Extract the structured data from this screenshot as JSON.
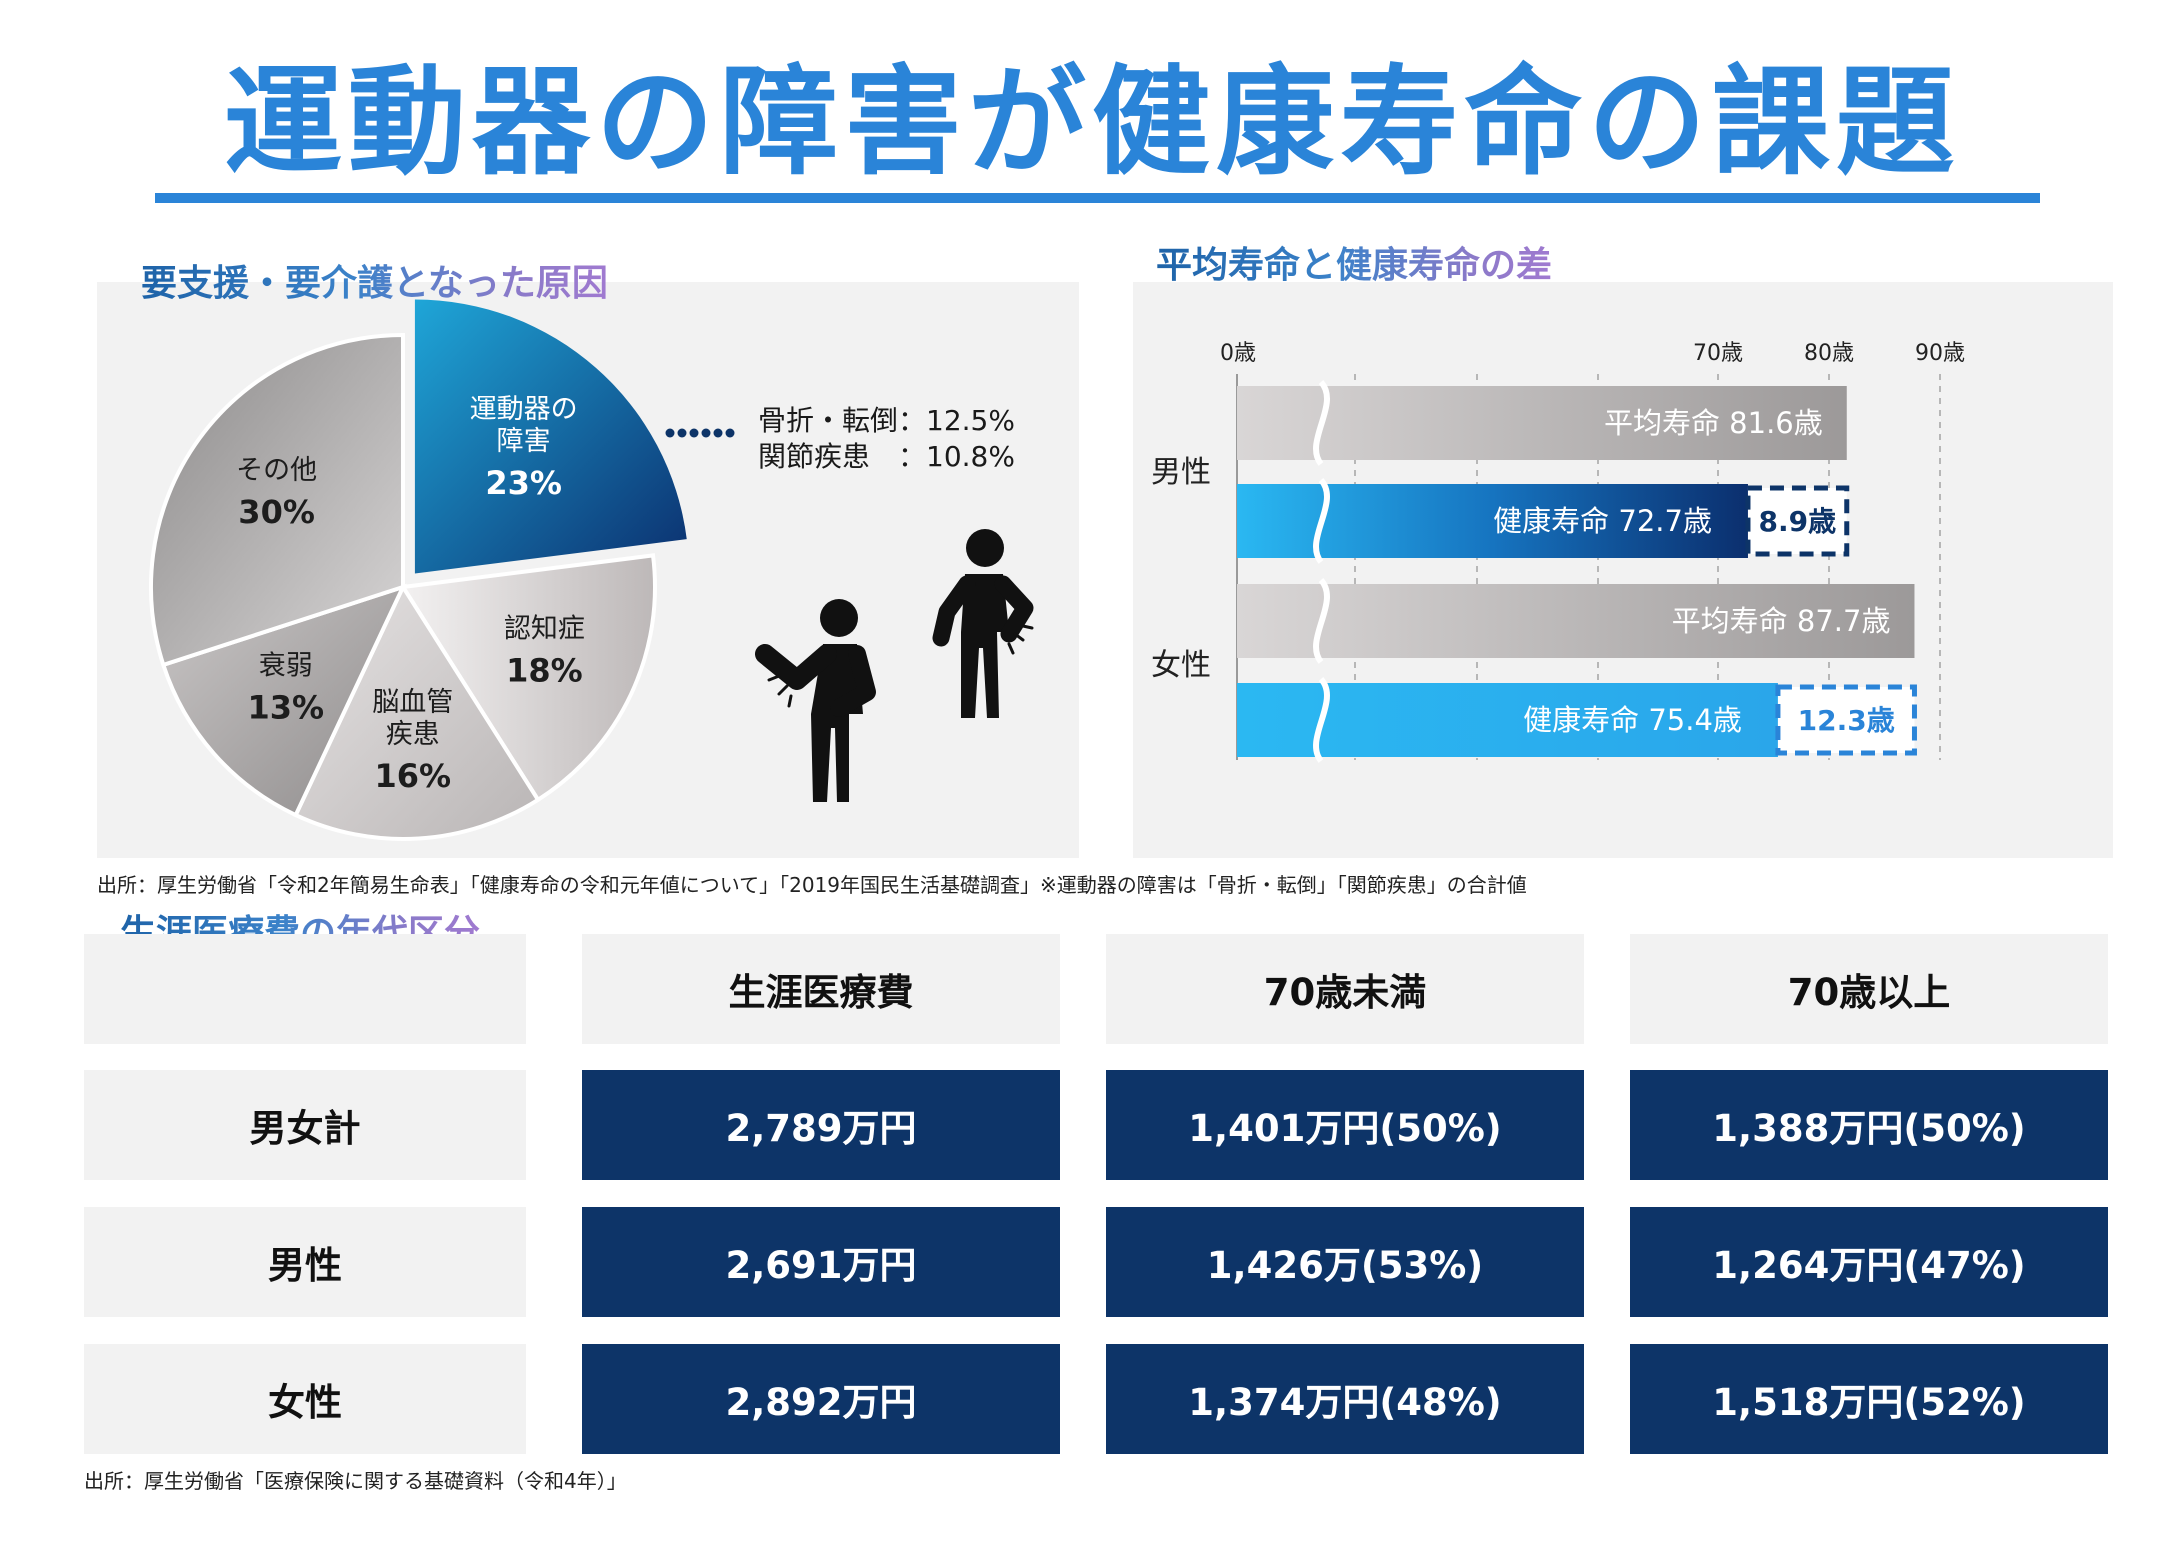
{
  "title": "運動器の障害が健康寿命の課題",
  "section1": {
    "title": "要支援・要介護となった原因",
    "callout_lines": [
      "骨折・転倒：12.5%",
      "関節疾患　：10.8%"
    ]
  },
  "section2": {
    "title": "平均寿命と健康寿命の差"
  },
  "source1": "出所：厚生労働省「令和2年簡易生命表」「健康寿命の令和元年値について」「2019年国民生活基礎調査」※運動器の障害は「骨折・転倒」「関節疾患」の合計値",
  "section3": {
    "title": "生涯医療費の年代区分"
  },
  "table": {
    "headers": [
      "生涯医療費",
      "70歳未満",
      "70歳以上"
    ],
    "rows": [
      {
        "label": "男女計",
        "cells": [
          "2,789万円",
          "1,401万円(50%)",
          "1,388万円(50%)"
        ]
      },
      {
        "label": "男性",
        "cells": [
          "2,691万円",
          "1,426万(53%)",
          "1,264万円(47%)"
        ]
      },
      {
        "label": "女性",
        "cells": [
          "2,892万円",
          "1,374万円(48%)",
          "1,518万円(52%)"
        ]
      }
    ]
  },
  "source2": "出所：厚生労働省「医療保険に関する基礎資料（令和4年）」",
  "colors": {
    "accent": "#2a84d8",
    "navy": "#0d3468",
    "bar_gray": "#c9c6c6",
    "bar_blue": "#2bb0ef"
  },
  "icons": [
    "dotted-leader-icon",
    "person-elbow-pain-icon",
    "person-back-pain-icon"
  ],
  "chart_data": [
    {
      "type": "pie",
      "title": "要支援・要介護となった原因",
      "slices": [
        {
          "name": "運動器の障害",
          "name_lines": [
            "運動器の",
            "障害"
          ],
          "value": 23,
          "label": "23%",
          "highlight": true
        },
        {
          "name": "認知症",
          "name_lines": [
            "認知症"
          ],
          "value": 18,
          "label": "18%"
        },
        {
          "name": "脳血管疾患",
          "name_lines": [
            "脳血管",
            "疾患"
          ],
          "value": 16,
          "label": "16%"
        },
        {
          "name": "衰弱",
          "name_lines": [
            "衰弱"
          ],
          "value": 13,
          "label": "13%"
        },
        {
          "name": "その他",
          "name_lines": [
            "その他"
          ],
          "value": 30,
          "label": "30%"
        }
      ]
    },
    {
      "type": "bar",
      "orientation": "horizontal",
      "title": "平均寿命と健康寿命の差",
      "xlim": [
        0,
        90
      ],
      "axis_break": true,
      "ticks": [
        {
          "value": 0,
          "label": "0歳"
        },
        {
          "value": 70,
          "label": "70歳"
        },
        {
          "value": 80,
          "label": "80歳"
        },
        {
          "value": 90,
          "label": "90歳"
        }
      ],
      "groups": [
        {
          "label": "男性",
          "bars": [
            {
              "name": "平均寿命",
              "value": 81.6,
              "text": "平均寿命 81.6歳"
            },
            {
              "name": "健康寿命",
              "value": 72.7,
              "text": "健康寿命 72.7歳"
            }
          ],
          "gap": 8.9,
          "gap_text": "8.9歳"
        },
        {
          "label": "女性",
          "bars": [
            {
              "name": "平均寿命",
              "value": 87.7,
              "text": "平均寿命 87.7歳"
            },
            {
              "name": "健康寿命",
              "value": 75.4,
              "text": "健康寿命 75.4歳"
            }
          ],
          "gap": 12.3,
          "gap_text": "12.3歳"
        }
      ]
    }
  ]
}
